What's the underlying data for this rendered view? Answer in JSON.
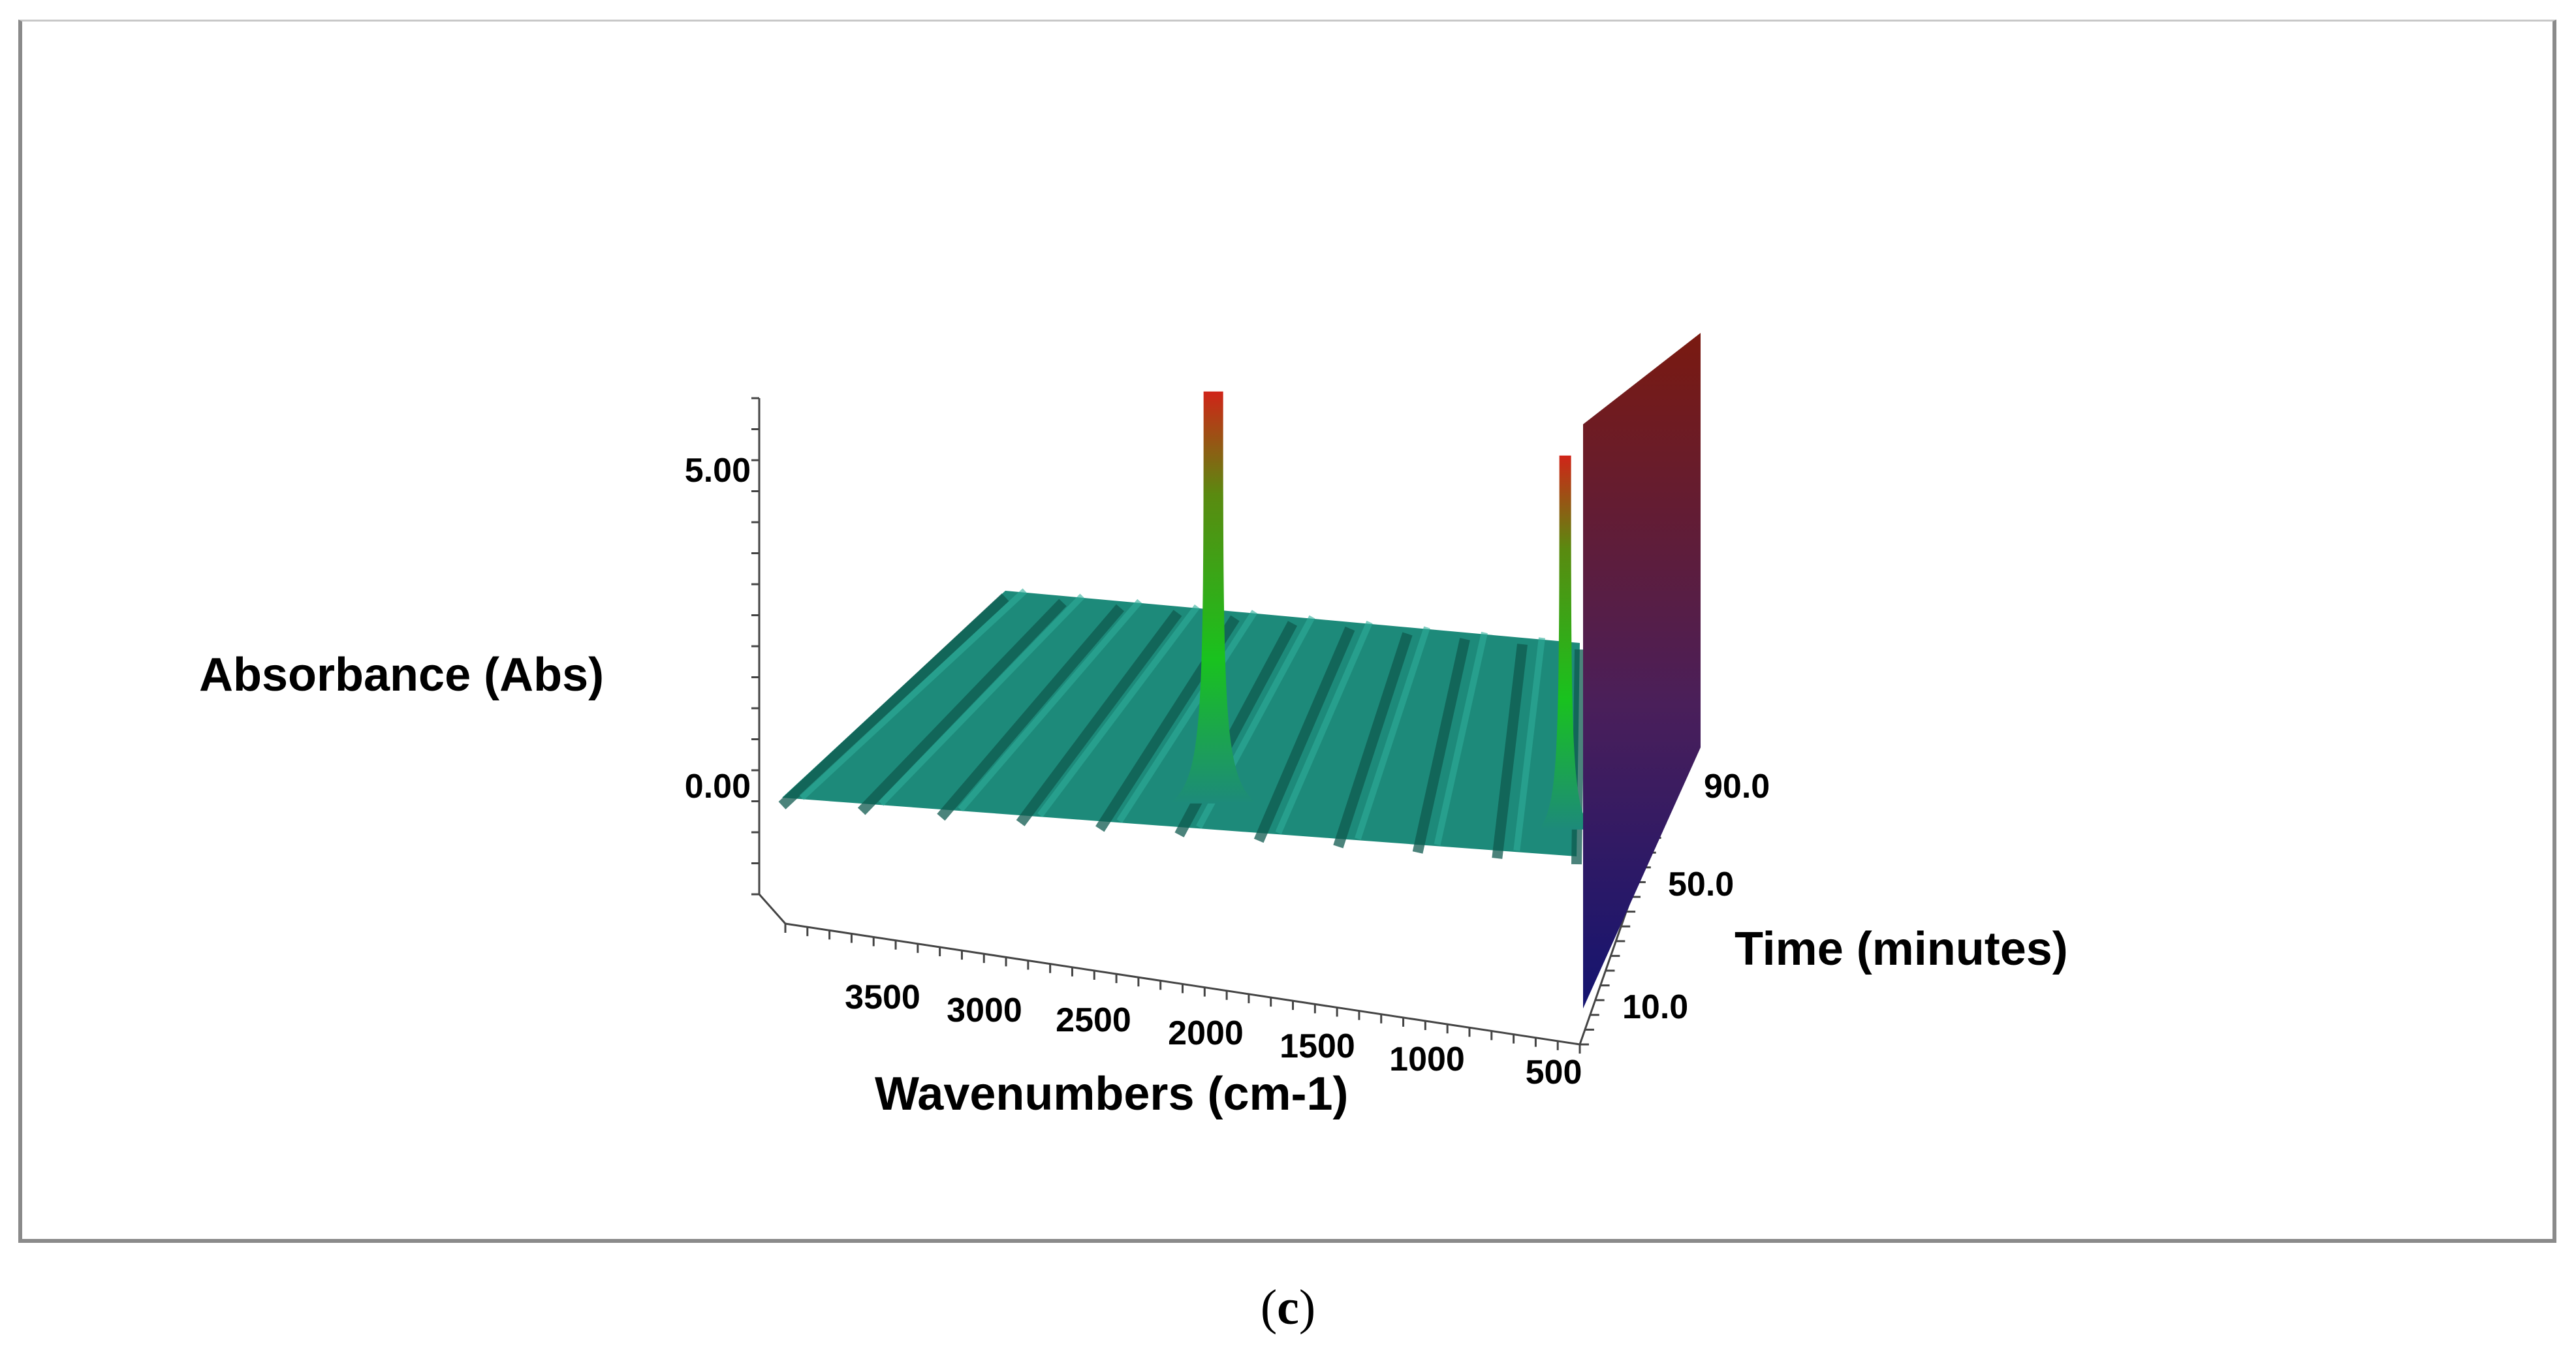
{
  "panel_label": {
    "open": "(",
    "letter": "c",
    "close": ")"
  },
  "colors": {
    "surface": "#1d8a7a",
    "surface_dark": "#0f5a4f",
    "peak_low": "#19c21e",
    "peak_high": "#c0201a",
    "wall_top": "#7a1a10",
    "wall_bottom": "#1a1a7a",
    "axis": "#444444"
  },
  "chart_data": {
    "type": "surface3d",
    "title": "",
    "xlabel": "Wavenumbers (cm-1)",
    "ylabel": "Absorbance (Abs)",
    "zlabel": "Time (minutes)",
    "x_ticks": [
      "3500",
      "3000",
      "2500",
      "2000",
      "1500",
      "1000",
      "500"
    ],
    "y_ticks": [
      "5.00",
      "0.00"
    ],
    "z_ticks": [
      "10.0",
      "50.0",
      "90.0"
    ],
    "xlim": [
      4000,
      500
    ],
    "ylim": [
      -1.5,
      6.0
    ],
    "zlim": [
      0,
      100
    ],
    "baseline_ripple_count": 10,
    "peaks": [
      {
        "wavenumber": 2100,
        "absorbance": 6.3
      },
      {
        "wavenumber": 550,
        "absorbance": 5.7
      }
    ],
    "low_wavenumber_edge_absorbance": 6.8
  }
}
